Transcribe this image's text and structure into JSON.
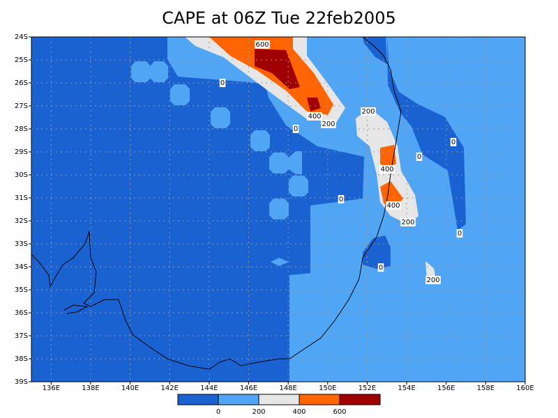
{
  "title": "CAPE at 06Z Tue 22feb2005",
  "map": {
    "lonlim": [
      135,
      160
    ],
    "latlim": [
      -39,
      -24
    ],
    "lonticks": [
      {
        "value": 136,
        "label": "136E"
      },
      {
        "value": 138,
        "label": "138E"
      },
      {
        "value": 140,
        "label": "140E"
      },
      {
        "value": 142,
        "label": "142E"
      },
      {
        "value": 144,
        "label": "144E"
      },
      {
        "value": 146,
        "label": "146E"
      },
      {
        "value": 148,
        "label": "148E"
      },
      {
        "value": 150,
        "label": "150E"
      },
      {
        "value": 152,
        "label": "152E"
      },
      {
        "value": 154,
        "label": "154E"
      },
      {
        "value": 156,
        "label": "156E"
      },
      {
        "value": 158,
        "label": "158E"
      },
      {
        "value": 160,
        "label": "160E"
      }
    ],
    "latticks": [
      {
        "value": -24,
        "label": "24S"
      },
      {
        "value": -25,
        "label": "25S"
      },
      {
        "value": -26,
        "label": "26S"
      },
      {
        "value": -27,
        "label": "27S"
      },
      {
        "value": -28,
        "label": "28S"
      },
      {
        "value": -29,
        "label": "29S"
      },
      {
        "value": -30,
        "label": "30S"
      },
      {
        "value": -31,
        "label": "31S"
      },
      {
        "value": -32,
        "label": "32S"
      },
      {
        "value": -33,
        "label": "33S"
      },
      {
        "value": -34,
        "label": "34S"
      },
      {
        "value": -35,
        "label": "35S"
      },
      {
        "value": -36,
        "label": "36S"
      },
      {
        "value": -37,
        "label": "37S"
      },
      {
        "value": -38,
        "label": "38S"
      },
      {
        "value": -39,
        "label": "39S"
      }
    ],
    "grid": true,
    "contour_labels": [
      600,
      0,
      400,
      200,
      0,
      200,
      400,
      400,
      0,
      0,
      0,
      200,
      0,
      0,
      200
    ]
  },
  "colorbar": {
    "levels": [
      0,
      200,
      400,
      600
    ],
    "colors": [
      "#1a62d2",
      "#50a5f5",
      "#e6e6e6",
      "#ff6400",
      "#a00000"
    ]
  }
}
